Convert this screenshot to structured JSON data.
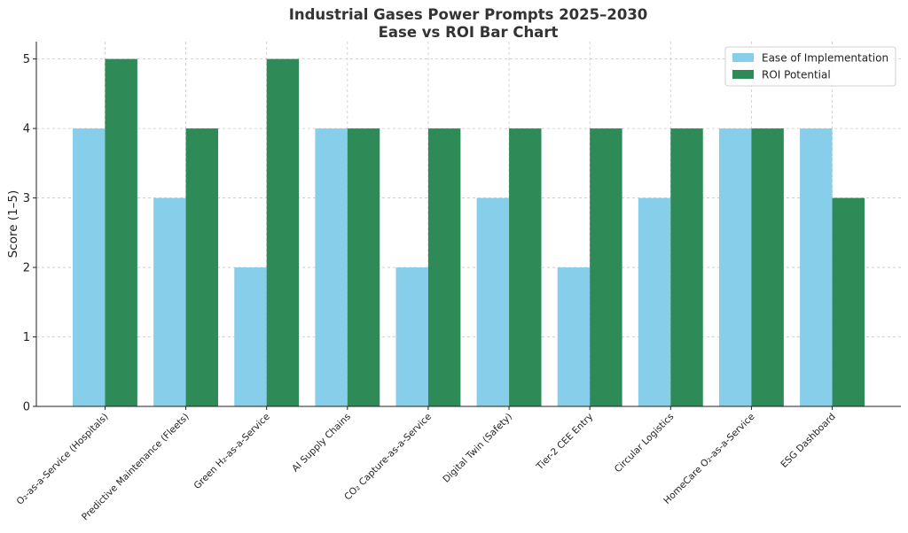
{
  "chart_data": {
    "type": "bar",
    "title": "Industrial Gases Power Prompts 2025–2030",
    "subtitle": "Ease vs ROI Bar Chart",
    "xlabel": "",
    "ylabel": "Score (1–5)",
    "ylim": [
      0,
      5.25
    ],
    "yticks": [
      0,
      1,
      2,
      3,
      4,
      5
    ],
    "grid": true,
    "legend_position": "top-right",
    "categories": [
      "O₂-as-a-Service (Hospitals)",
      "Predictive Maintenance (Fleets)",
      "Green H₂-as-a-Service",
      "AI Supply Chains",
      "CO₂ Capture-as-a-Service",
      "Digital Twin (Safety)",
      "Tier-2 CEE Entry",
      "Circular Logistics",
      "HomeCare O₂-as-a-Service",
      "ESG Dashboard"
    ],
    "series": [
      {
        "name": "Ease of Implementation",
        "color": "#87ceeb",
        "values": [
          4,
          3,
          2,
          4,
          2,
          3,
          2,
          3,
          4,
          4
        ]
      },
      {
        "name": "ROI Potential",
        "color": "#2e8b57",
        "values": [
          5,
          4,
          5,
          4,
          4,
          4,
          4,
          4,
          4,
          3
        ]
      }
    ]
  }
}
